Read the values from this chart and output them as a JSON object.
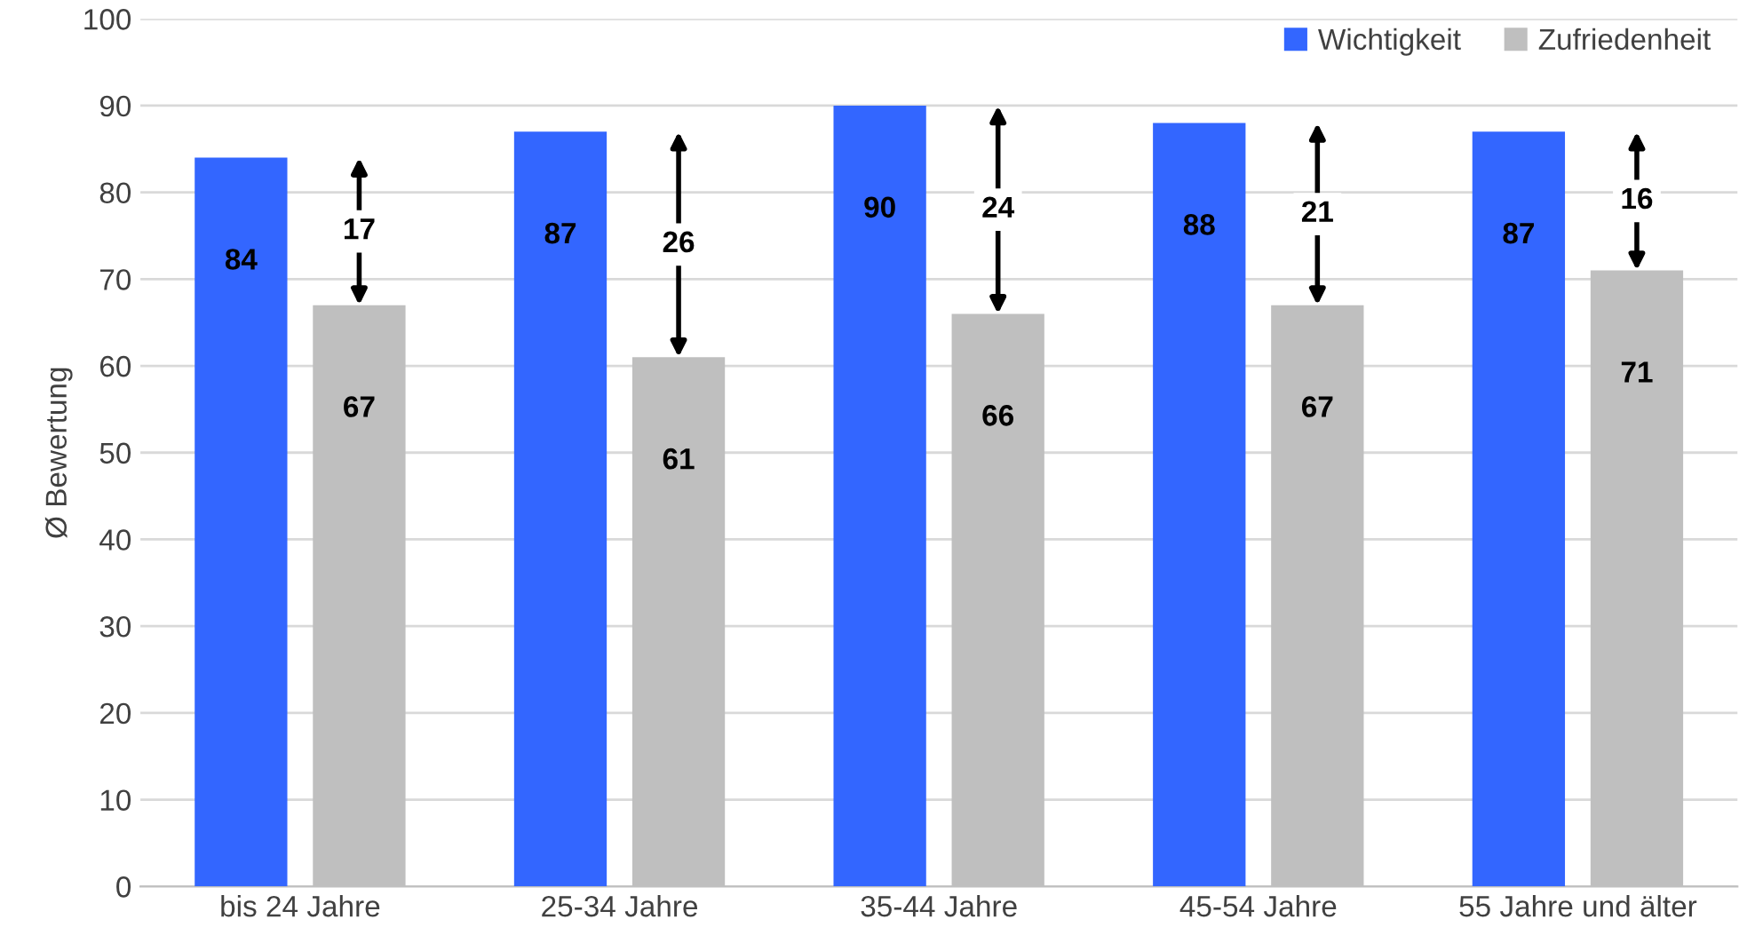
{
  "chart_data": {
    "type": "bar",
    "ylabel": "Ø Bewertung",
    "categories": [
      "bis 24 Jahre",
      "25-34 Jahre",
      "35-44 Jahre",
      "45-54 Jahre",
      "55 Jahre und älter"
    ],
    "series": [
      {
        "name": "Wichtigkeit",
        "color": "#3366ff",
        "values": [
          84,
          87,
          90,
          88,
          87
        ]
      },
      {
        "name": "Zufriedenheit",
        "color": "#bfbfbf",
        "values": [
          67,
          61,
          66,
          67,
          71
        ]
      }
    ],
    "ylim": [
      0,
      100
    ],
    "yticks": [
      0,
      10,
      20,
      30,
      40,
      50,
      60,
      70,
      80,
      90,
      100
    ],
    "grid": "y",
    "legend": "top right",
    "data_labels": true,
    "annotations": [
      "17",
      "26",
      "24",
      "21",
      "16"
    ]
  }
}
